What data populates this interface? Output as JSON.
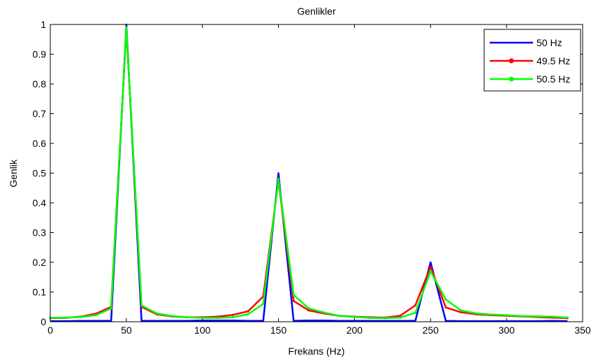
{
  "chart_data": {
    "type": "line",
    "title": "Genlikler",
    "xlabel": "Frekans (Hz)",
    "ylabel": "Genlik",
    "xlim": [
      0,
      350
    ],
    "ylim": [
      0,
      1
    ],
    "xticks": [
      0,
      50,
      100,
      150,
      200,
      250,
      300,
      350
    ],
    "yticks": [
      0,
      0.1,
      0.2,
      0.3,
      0.4,
      0.5,
      0.6,
      0.7,
      0.8,
      0.9,
      1
    ],
    "x": [
      0,
      10,
      20,
      30,
      40,
      50,
      60,
      70,
      80,
      90,
      100,
      110,
      120,
      130,
      140,
      150,
      160,
      170,
      180,
      190,
      200,
      210,
      220,
      230,
      240,
      250,
      260,
      270,
      280,
      290,
      300,
      310,
      320,
      330,
      340
    ],
    "legend_position": "top-right",
    "grid": false,
    "series": [
      {
        "name": "50 Hz",
        "color": "#0000ff",
        "marker": "none",
        "values": [
          0.002,
          0.002,
          0.003,
          0.003,
          0.003,
          1.0,
          0.003,
          0.003,
          0.003,
          0.003,
          0.004,
          0.004,
          0.004,
          0.003,
          0.003,
          0.5,
          0.003,
          0.004,
          0.004,
          0.003,
          0.003,
          0.003,
          0.003,
          0.003,
          0.003,
          0.2,
          0.003,
          0.002,
          0.002,
          0.002,
          0.002,
          0.002,
          0.002,
          0.003,
          0.002
        ]
      },
      {
        "name": "49.5 Hz",
        "color": "#ff0000",
        "marker": "dot",
        "values": [
          0.012,
          0.013,
          0.017,
          0.027,
          0.05,
          0.985,
          0.05,
          0.025,
          0.018,
          0.015,
          0.015,
          0.017,
          0.023,
          0.035,
          0.085,
          0.475,
          0.07,
          0.038,
          0.028,
          0.02,
          0.017,
          0.015,
          0.014,
          0.02,
          0.055,
          0.185,
          0.048,
          0.032,
          0.025,
          0.022,
          0.02,
          0.018,
          0.016,
          0.014,
          0.012
        ]
      },
      {
        "name": "50.5 Hz",
        "color": "#00ff00",
        "marker": "dot",
        "values": [
          0.013,
          0.014,
          0.016,
          0.022,
          0.045,
          0.99,
          0.055,
          0.028,
          0.019,
          0.015,
          0.013,
          0.013,
          0.015,
          0.025,
          0.06,
          0.48,
          0.09,
          0.045,
          0.031,
          0.02,
          0.016,
          0.013,
          0.012,
          0.014,
          0.03,
          0.17,
          0.075,
          0.038,
          0.028,
          0.024,
          0.022,
          0.019,
          0.018,
          0.017,
          0.014
        ]
      }
    ]
  }
}
